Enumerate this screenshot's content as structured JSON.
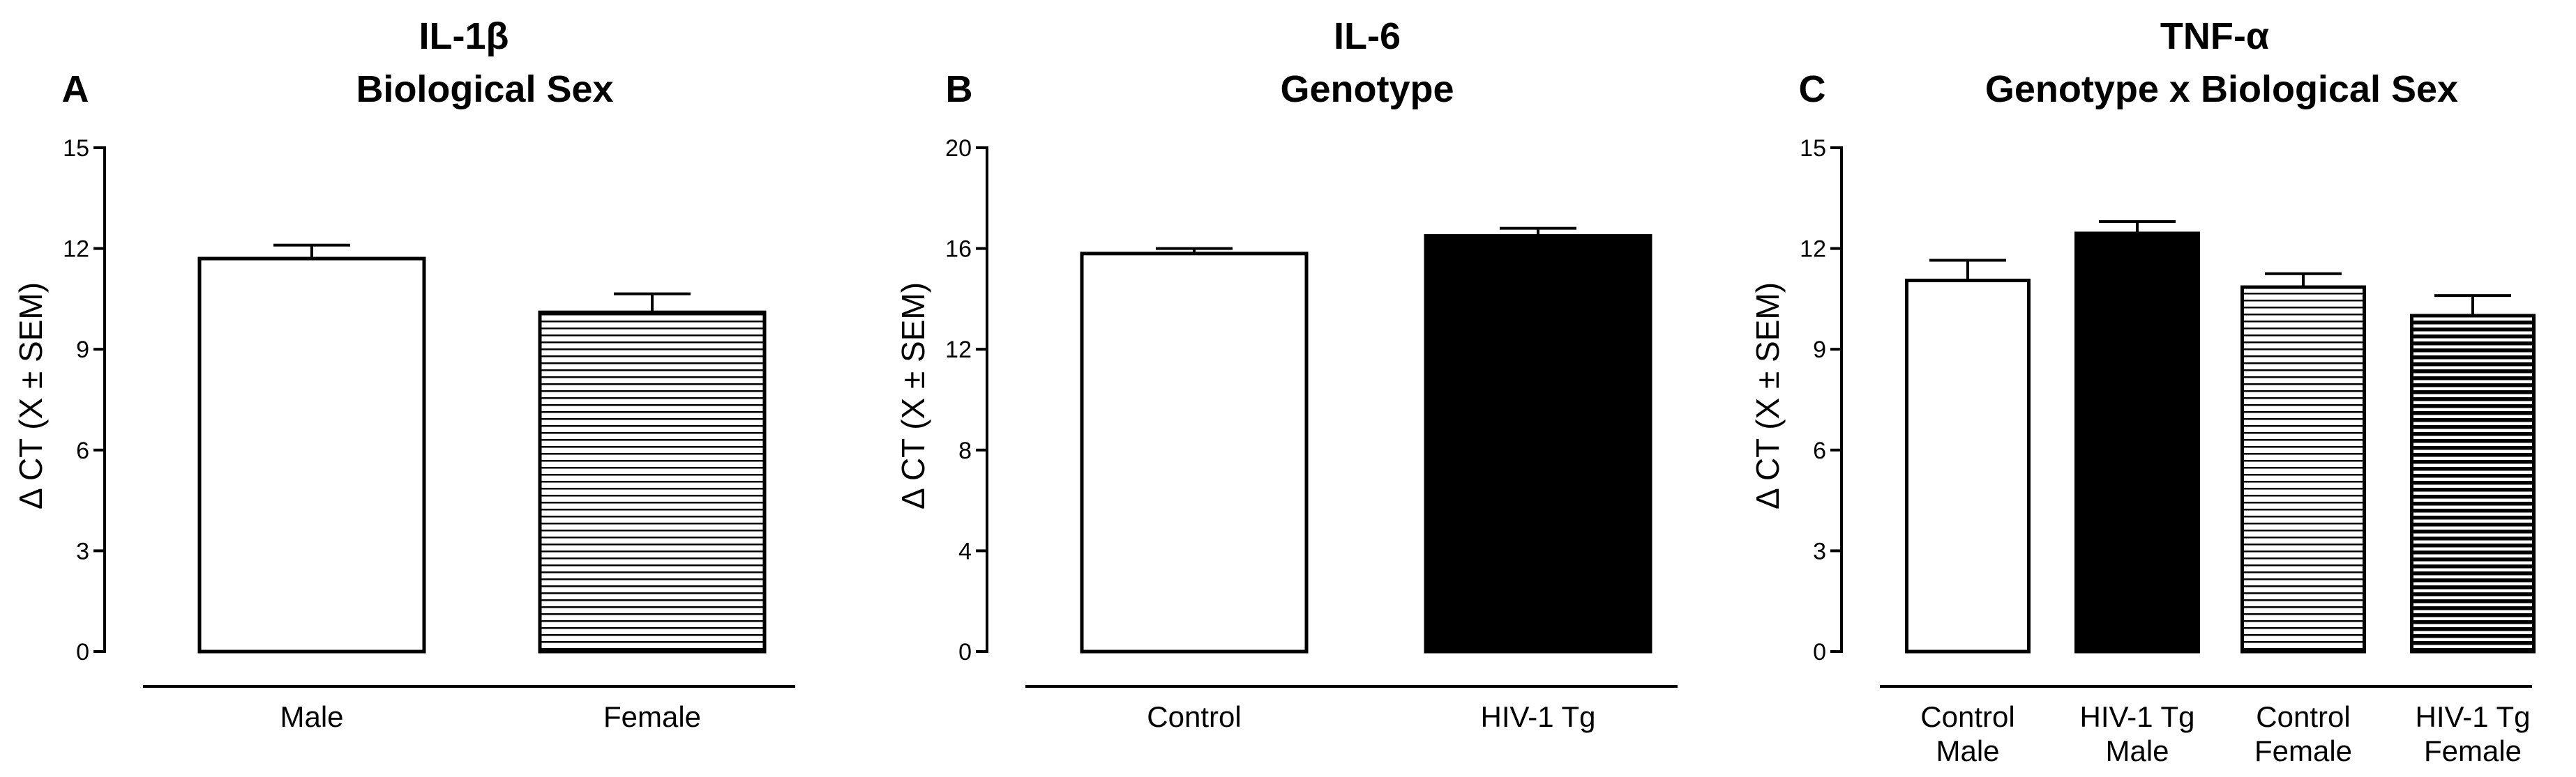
{
  "panels": [
    {
      "letter": "A",
      "title_lines": [
        "IL-1β",
        "Biological  Sex"
      ],
      "ylabel": "Δ CT (X ± SEM)"
    },
    {
      "letter": "B",
      "title_lines": [
        "IL-6",
        "Genotype"
      ],
      "ylabel": "Δ CT (X ± SEM)"
    },
    {
      "letter": "C",
      "title_lines": [
        "TNF-α",
        "Genotype x  Biological  Sex"
      ],
      "ylabel": "Δ CT (X ± SEM)"
    }
  ],
  "chart_data": [
    {
      "type": "bar",
      "title": "IL-1β Biological  Sex",
      "ylabel": "Δ CT (X ± SEM)",
      "ylim": [
        0,
        15
      ],
      "yticks": [
        "0",
        "3",
        "6",
        "9",
        "12",
        "15"
      ],
      "categories": [
        [
          "Male"
        ],
        [
          "Female"
        ]
      ],
      "values": [
        11.7,
        10.1
      ],
      "errors": [
        0.4,
        0.55
      ],
      "fills": [
        "white",
        "thin-stripes"
      ]
    },
    {
      "type": "bar",
      "title": "IL-6 Genotype",
      "ylabel": "Δ CT (X ± SEM)",
      "ylim": [
        0,
        20
      ],
      "yticks": [
        "0",
        "4",
        "8",
        "12",
        "16",
        "20"
      ],
      "categories": [
        [
          "Control"
        ],
        [
          "HIV-1 Tg"
        ]
      ],
      "values": [
        15.8,
        16.5
      ],
      "errors": [
        0.2,
        0.3
      ],
      "fills": [
        "white",
        "black"
      ]
    },
    {
      "type": "bar",
      "title": "TNF-α Genotype x  Biological  Sex",
      "ylabel": "Δ CT (X ± SEM)",
      "ylim": [
        0,
        15
      ],
      "yticks": [
        "0",
        "3",
        "6",
        "9",
        "12",
        "15"
      ],
      "categories": [
        [
          "Control",
          "Male"
        ],
        [
          "HIV-1 Tg",
          "Male"
        ],
        [
          "Control",
          "Female"
        ],
        [
          "HIV-1 Tg",
          "Female"
        ]
      ],
      "values": [
        11.05,
        12.45,
        10.85,
        10.0
      ],
      "errors": [
        0.6,
        0.35,
        0.4,
        0.6
      ],
      "fills": [
        "white",
        "black",
        "thin-stripes",
        "thick-stripes"
      ]
    }
  ]
}
